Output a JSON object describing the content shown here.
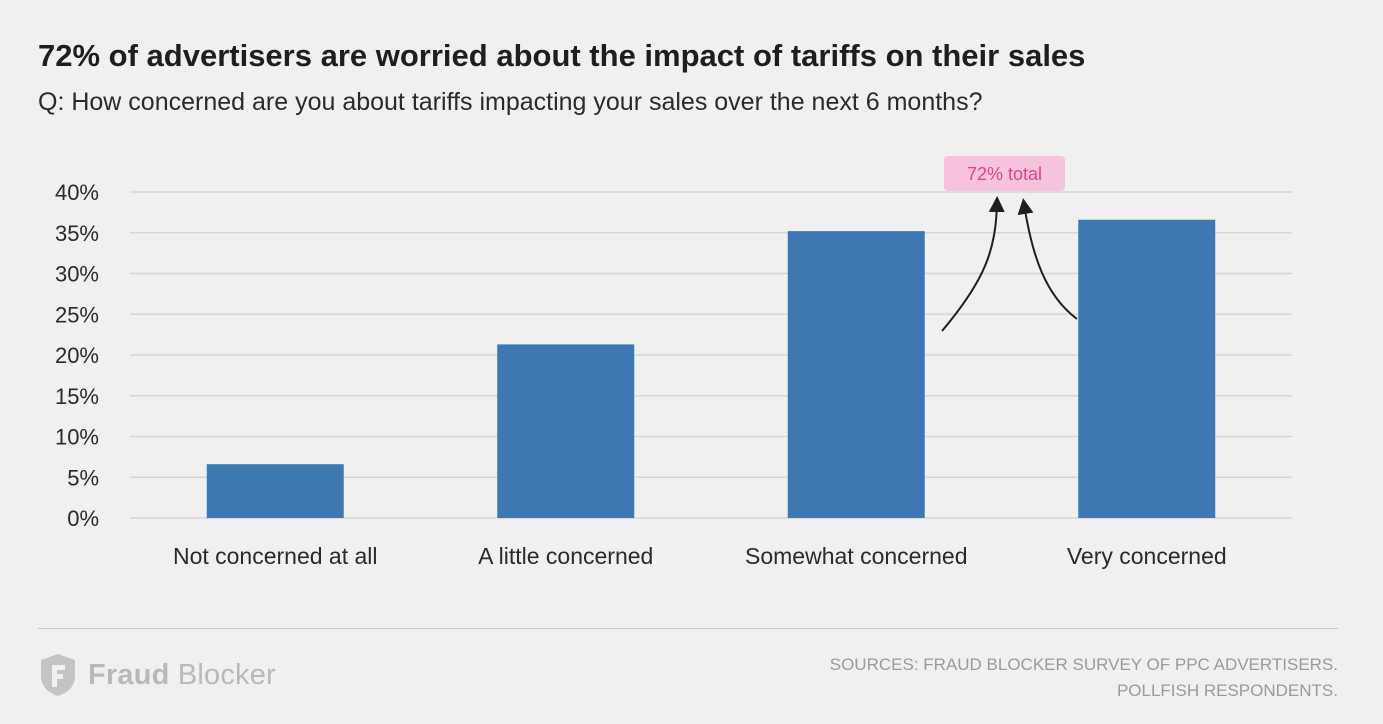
{
  "title": "72% of advertisers are worried about the impact of tariffs on their sales",
  "subtitle": "Q: How concerned are you about tariffs impacting your sales over the next 6 months?",
  "chart_data": {
    "type": "bar",
    "categories": [
      "Not concerned at all",
      "A little concerned",
      "Somewhat concerned",
      "Very concerned"
    ],
    "values": [
      6.6,
      21.3,
      35.2,
      36.6
    ],
    "ylim": [
      0,
      40
    ],
    "yticks": [
      0,
      5,
      10,
      15,
      20,
      25,
      30,
      35,
      40
    ],
    "ytick_labels": [
      "0%",
      "5%",
      "10%",
      "15%",
      "20%",
      "25%",
      "30%",
      "35%",
      "40%"
    ],
    "grid": true,
    "bar_color": "#3d78b2",
    "annotation": {
      "text": "72% total",
      "color": "#e0448f",
      "background": "#f6c2dc"
    }
  },
  "brand": {
    "name_bold": "Fraud",
    "name_rest": " Blocker"
  },
  "sources": {
    "line1": "SOURCES: FRAUD BLOCKER SURVEY OF PPC ADVERTISERS.",
    "line2": "POLLFISH RESPONDENTS."
  }
}
